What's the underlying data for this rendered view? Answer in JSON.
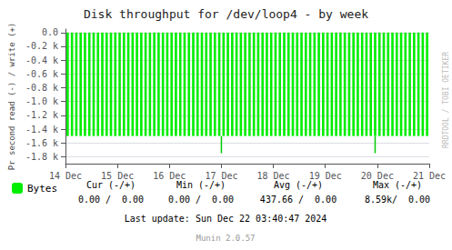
{
  "chart_data": {
    "type": "bar",
    "title": "Disk throughput for /dev/loop4 - by week",
    "ylabel": "Pr second read (-) / write (+)",
    "xlim": [
      0,
      604800
    ],
    "xticks": [
      {
        "value": 0,
        "label": "14 Dec"
      },
      {
        "value": 86400,
        "label": "15 Dec"
      },
      {
        "value": 172800,
        "label": "16 Dec"
      },
      {
        "value": 259200,
        "label": "17 Dec"
      },
      {
        "value": 345600,
        "label": "18 Dec"
      },
      {
        "value": 432000,
        "label": "19 Dec"
      },
      {
        "value": 518400,
        "label": "20 Dec"
      },
      {
        "value": 604800,
        "label": "21 Dec"
      }
    ],
    "ylim": [
      -1900,
      50
    ],
    "yticks": [
      {
        "value": 0,
        "label": "0.0"
      },
      {
        "value": -200,
        "label": "-0.2 k"
      },
      {
        "value": -400,
        "label": "-0.4 k"
      },
      {
        "value": -600,
        "label": "-0.6 k"
      },
      {
        "value": -800,
        "label": "-0.8 k"
      },
      {
        "value": -1000,
        "label": "-1.0 k"
      },
      {
        "value": -1200,
        "label": "-1.2 k"
      },
      {
        "value": -1400,
        "label": "-1.4 k"
      },
      {
        "value": -1600,
        "label": "-1.6 k"
      },
      {
        "value": -1800,
        "label": "-1.8 k"
      }
    ],
    "grid": true,
    "legend": "bottom",
    "series": [
      {
        "name": "Bytes",
        "type": "bar",
        "color": "#00ee00",
        "x": [
          3600,
          10800,
          18000,
          25200,
          32400,
          39600,
          46800,
          54000,
          61200,
          68400,
          75600,
          82800,
          90000,
          97200,
          104400,
          111600,
          118800,
          126000,
          133200,
          140400,
          147600,
          154800,
          162000,
          169200,
          176400,
          183600,
          190800,
          198000,
          205200,
          212400,
          219600,
          226800,
          234000,
          241200,
          248400,
          255600,
          262800,
          270000,
          277200,
          284400,
          291600,
          298800,
          306000,
          313200,
          320400,
          327600,
          334800,
          342000,
          349200,
          356400,
          363600,
          370800,
          378000,
          385200,
          392400,
          399600,
          406800,
          414000,
          421200,
          428400,
          435600,
          442800,
          450000,
          457200,
          464400,
          471600,
          478800,
          486000,
          493200,
          500400,
          507600,
          514800,
          522000,
          529200,
          536400,
          543600,
          550800,
          558000,
          565200,
          572400,
          579600,
          586800,
          594000,
          601200
        ],
        "values": [
          -1500,
          -1500,
          -1500,
          -1500,
          -1500,
          -1500,
          -1500,
          -1500,
          -1500,
          -1500,
          -1500,
          -1500,
          -1500,
          -1500,
          -1500,
          -1500,
          -1500,
          -1500,
          -1500,
          -1500,
          -1500,
          -1500,
          -1500,
          -1500,
          -1500,
          -1500,
          -1500,
          -1500,
          -1500,
          -1500,
          -1500,
          -1500,
          -1500,
          -1500,
          -1500,
          -1500,
          -1500,
          -1500,
          -1500,
          -1500,
          -1500,
          -1500,
          -1500,
          -1500,
          -1500,
          -1500,
          -1500,
          -1500,
          -1500,
          -1500,
          -1500,
          -1500,
          -1500,
          -1500,
          -1500,
          -1500,
          -1500,
          -1500,
          -1500,
          -1500,
          -1500,
          -1500,
          -1500,
          -1500,
          -1500,
          -1500,
          -1500,
          -1500,
          -1500,
          -1500,
          -1500,
          -1500,
          -1500,
          -1500,
          -1500,
          -1500,
          -1500,
          -1500,
          -1500,
          -1500,
          -1500,
          -1500,
          -1500,
          -1500
        ]
      },
      {
        "type": "line",
        "color": "#00cc00",
        "x": [
          259200,
          259200
        ],
        "values": [
          -1500,
          -1750
        ]
      },
      {
        "type": "line",
        "color": "#00cc00",
        "x": [
          514800,
          514800
        ],
        "values": [
          -1500,
          -1750
        ]
      }
    ],
    "annotations": [
      "Cur (-/+)",
      "Min (-/+)",
      "Avg (-/+)",
      "Max (-/+)",
      "0.00 /  0.00",
      "0.00 /  0.00",
      "437.66 /  0.00",
      "8.59k/  0.00",
      "Last update: Sun Dec 22 03:40:47 2024",
      "Munin 2.0.57",
      "RRDTOOL / TOBI OETIKER"
    ]
  }
}
